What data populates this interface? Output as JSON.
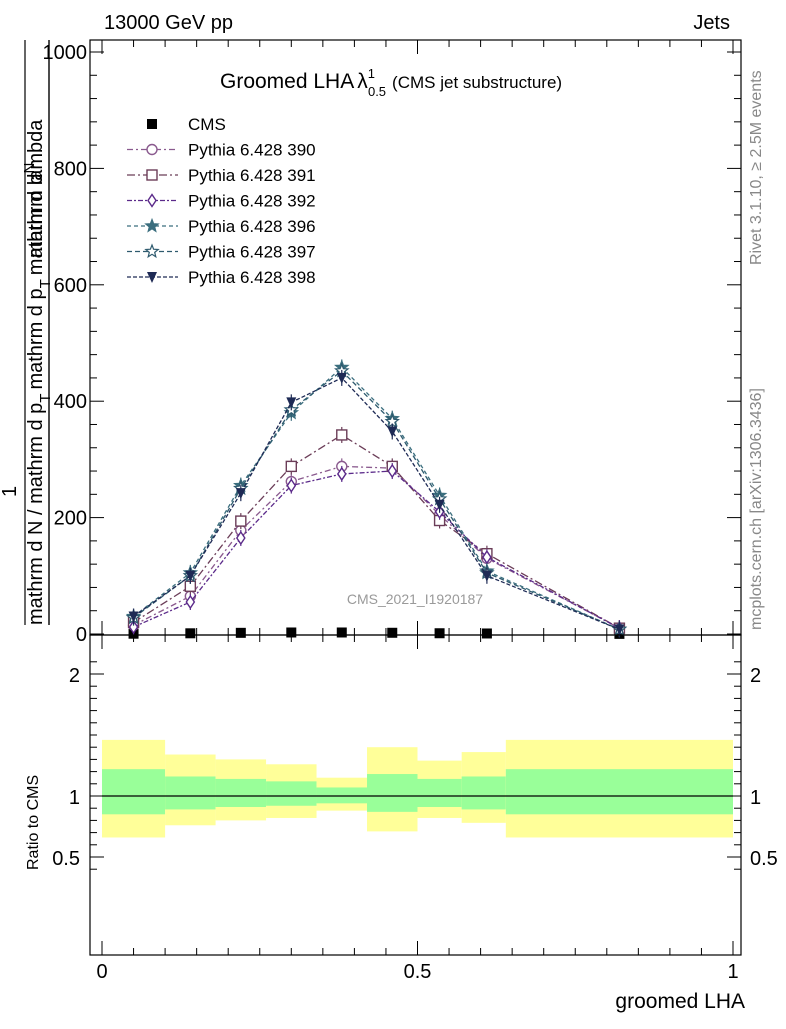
{
  "header": {
    "left": "13000 GeV pp",
    "right": "Jets"
  },
  "title": {
    "main": "Groomed LHA",
    "lambda": "λ",
    "sup": "1",
    "sub": "0.5",
    "paren": "(CMS jet substructure)"
  },
  "side_labels": {
    "rivet": "Rivet 3.1.10, ≥ 2.5M events",
    "mcplots": "mcplots.cern.ch [arXiv:1306.3436]"
  },
  "watermark": "CMS_2021_I1920187",
  "ylabel_top": {
    "num_one": "1",
    "num_mid": "mathrm d",
    "num_N": "N",
    "den": "mathrm d N / mathrm d p",
    "den_T": "T",
    "num2": "mathrm d",
    "num2_N": "N",
    "den2": "mathrm d p",
    "den2_T": "T",
    "den2_tail": "mathrm d lambda",
    "combined_left": "mathrm d N / mathrm d p",
    "combined_T": "T",
    "combined_right": "mathrm d p",
    "combined_T2": "T",
    "combined_end": "mathrm d lambda"
  },
  "ylabel_ratio": "Ratio to CMS",
  "xlabel": "groomed LHA",
  "colors": {
    "band_outer": "#ffff99",
    "band_inner": "#99ff99",
    "p390": "#8a5a8e",
    "p391": "#6b3d58",
    "p392": "#5b2a8a",
    "p396": "#3b6e7e",
    "p397": "#2e5a6e",
    "p398": "#1e2a55"
  },
  "chart_data": [
    {
      "type": "line",
      "title": "Groomed LHA λ^1_0.5 (CMS jet substructure)",
      "xlim": [
        0,
        1
      ],
      "ylim": [
        0,
        1000
      ],
      "x_ticks": [
        "0",
        "0.5",
        "1"
      ],
      "y_ticks": [
        "0",
        "200",
        "400",
        "600",
        "800",
        "1000"
      ],
      "legend_position": "top-left",
      "x": [
        0.05,
        0.14,
        0.22,
        0.3,
        0.38,
        0.46,
        0.535,
        0.61,
        0.82
      ],
      "series": [
        {
          "name": "CMS",
          "marker": "square",
          "values": [
            0.5,
            1.2,
            2.0,
            2.6,
            2.6,
            2.1,
            1.3,
            0.9,
            0.2
          ]
        },
        {
          "name": "Pythia 6.428 390",
          "marker": "circle-open",
          "values": [
            15,
            65,
            178,
            262,
            288,
            285,
            205,
            130,
            10
          ]
        },
        {
          "name": "Pythia 6.428 391",
          "marker": "square-open",
          "values": [
            20,
            82,
            194,
            288,
            342,
            288,
            195,
            138,
            10
          ]
        },
        {
          "name": "Pythia 6.428 392",
          "marker": "diamond-open",
          "values": [
            12,
            55,
            165,
            255,
            275,
            280,
            210,
            132,
            10
          ]
        },
        {
          "name": "Pythia 6.428 396",
          "marker": "star-filled",
          "values": [
            30,
            105,
            255,
            380,
            458,
            370,
            238,
            108,
            8
          ]
        },
        {
          "name": "Pythia 6.428 397",
          "marker": "star-open",
          "values": [
            28,
            100,
            250,
            385,
            452,
            365,
            232,
            105,
            8
          ]
        },
        {
          "name": "Pythia 6.428 398",
          "marker": "triangle-down-filled",
          "values": [
            30,
            100,
            242,
            398,
            440,
            348,
            222,
            100,
            8
          ]
        }
      ]
    },
    {
      "type": "area",
      "ylabel": "Ratio to CMS",
      "xlabel": "groomed LHA",
      "xlim": [
        0,
        1
      ],
      "ylim": [
        0.35,
        2.25
      ],
      "y_ticks": [
        "0.5",
        "1",
        "2"
      ],
      "bins": [
        [
          0.0,
          0.1
        ],
        [
          0.1,
          0.18
        ],
        [
          0.18,
          0.26
        ],
        [
          0.26,
          0.34
        ],
        [
          0.34,
          0.42
        ],
        [
          0.42,
          0.5
        ],
        [
          0.5,
          0.57
        ],
        [
          0.57,
          0.64
        ],
        [
          0.64,
          1.0
        ]
      ],
      "band_outer": [
        [
          0.66,
          1.46
        ],
        [
          0.76,
          1.34
        ],
        [
          0.8,
          1.3
        ],
        [
          0.82,
          1.26
        ],
        [
          0.88,
          1.15
        ],
        [
          0.71,
          1.4
        ],
        [
          0.82,
          1.29
        ],
        [
          0.78,
          1.36
        ],
        [
          0.66,
          1.46
        ]
      ],
      "band_inner": [
        [
          0.85,
          1.22
        ],
        [
          0.89,
          1.16
        ],
        [
          0.91,
          1.14
        ],
        [
          0.92,
          1.12
        ],
        [
          0.94,
          1.07
        ],
        [
          0.87,
          1.18
        ],
        [
          0.91,
          1.14
        ],
        [
          0.89,
          1.16
        ],
        [
          0.85,
          1.22
        ]
      ],
      "reference": 1.0
    }
  ]
}
